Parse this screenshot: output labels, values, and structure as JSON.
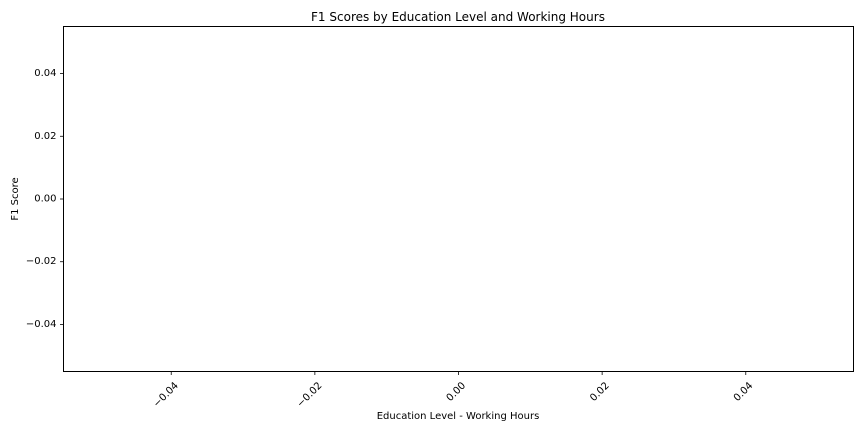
{
  "chart_data": {
    "type": "bar",
    "title": "F1 Scores by Education Level and Working Hours",
    "xlabel": "Education Level - Working Hours",
    "ylabel": "F1 Score",
    "categories": [],
    "series": [],
    "xlim": [
      -0.055,
      0.055
    ],
    "ylim": [
      -0.055,
      0.055
    ],
    "xticks": [
      {
        "value": -0.04,
        "label": "−0.04"
      },
      {
        "value": -0.02,
        "label": "−0.02"
      },
      {
        "value": 0.0,
        "label": "0.00"
      },
      {
        "value": 0.02,
        "label": "0.02"
      },
      {
        "value": 0.04,
        "label": "0.04"
      }
    ],
    "yticks": [
      {
        "value": 0.04,
        "label": "0.04"
      },
      {
        "value": 0.02,
        "label": "0.02"
      },
      {
        "value": 0.0,
        "label": "0.00"
      },
      {
        "value": -0.02,
        "label": "−0.02"
      },
      {
        "value": -0.04,
        "label": "−0.04"
      }
    ],
    "xtick_rotation": "45",
    "grid": false,
    "legend": "none"
  }
}
